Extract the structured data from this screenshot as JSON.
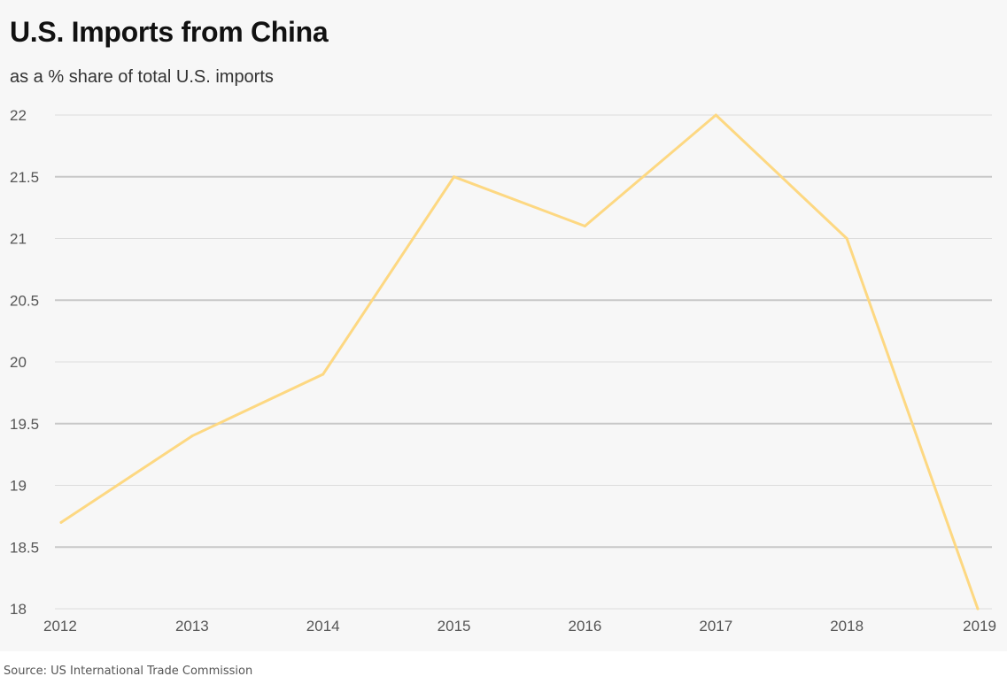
{
  "chart_data": {
    "type": "line",
    "title": "U.S. Imports from China",
    "subtitle": "as a % share of total U.S. imports",
    "x": [
      "2012",
      "2013",
      "2014",
      "2015",
      "2016",
      "2017",
      "2018",
      "2019"
    ],
    "series": [
      {
        "values": [
          18.7,
          19.4,
          19.9,
          21.5,
          21.1,
          22.0,
          21.0,
          18.0
        ],
        "color": "#fdd882"
      }
    ],
    "ylim": [
      18,
      22
    ],
    "yticks": [
      "18",
      "18.5",
      "19",
      "19.5",
      "20",
      "20.5",
      "21",
      "21.5",
      "22"
    ],
    "grid": true,
    "xlabel": "",
    "ylabel": ""
  },
  "source": "Source: US International Trade Commission"
}
